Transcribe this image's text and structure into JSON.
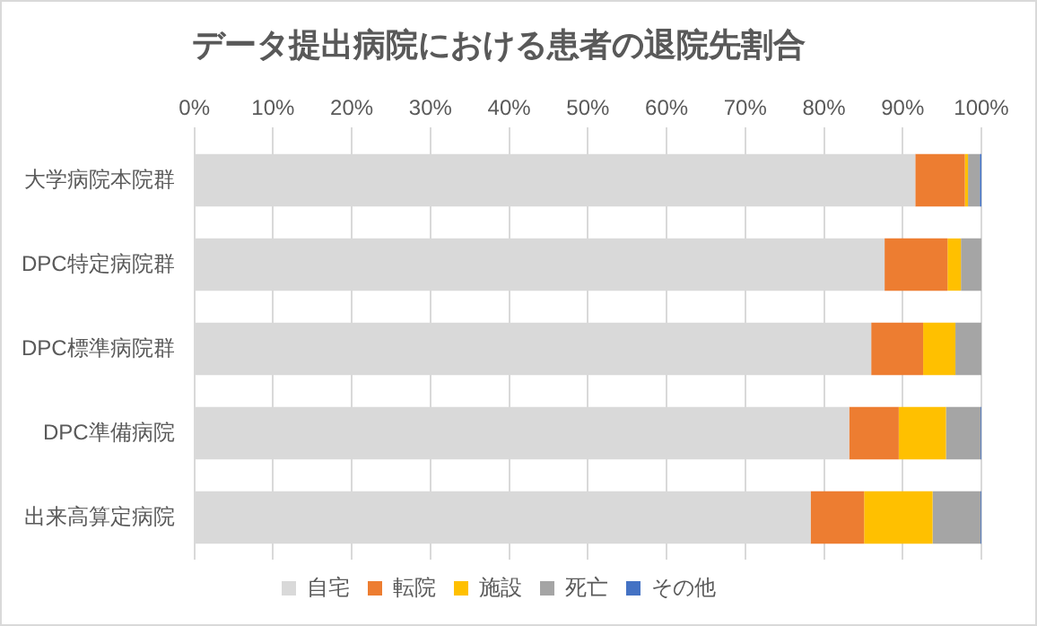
{
  "chart_data": {
    "type": "bar",
    "orientation": "horizontal",
    "stacked": true,
    "title": "データ提出病院における患者の退院先割合",
    "categories": [
      "大学病院本院群",
      "DPC特定病院群",
      "DPC標準病院群",
      "DPC準備病院",
      "出来高算定病院"
    ],
    "series": [
      {
        "name": "自宅",
        "color": "#d9d9d9",
        "values": [
          91.6,
          87.7,
          86.0,
          83.2,
          78.3
        ]
      },
      {
        "name": "転院",
        "color": "#ed7d31",
        "values": [
          6.3,
          8.0,
          6.6,
          6.3,
          6.8
        ]
      },
      {
        "name": "施設",
        "color": "#ffc000",
        "values": [
          0.4,
          1.7,
          4.1,
          6.0,
          8.7
        ]
      },
      {
        "name": "死亡",
        "color": "#a5a5a5",
        "values": [
          1.5,
          2.6,
          3.3,
          4.4,
          6.1
        ]
      },
      {
        "name": "その他",
        "color": "#4472c4",
        "values": [
          0.2,
          0.0,
          0.0,
          0.1,
          0.1
        ]
      }
    ],
    "xlim": [
      0,
      100
    ],
    "xticks": [
      {
        "value": 0,
        "label": "0%"
      },
      {
        "value": 10,
        "label": "10%"
      },
      {
        "value": 20,
        "label": "20%"
      },
      {
        "value": 30,
        "label": "30%"
      },
      {
        "value": 40,
        "label": "40%"
      },
      {
        "value": 50,
        "label": "50%"
      },
      {
        "value": 60,
        "label": "60%"
      },
      {
        "value": 70,
        "label": "70%"
      },
      {
        "value": 80,
        "label": "80%"
      },
      {
        "value": 90,
        "label": "90%"
      },
      {
        "value": 100,
        "label": "100%"
      }
    ],
    "grid": "x",
    "legend": "bottom"
  }
}
